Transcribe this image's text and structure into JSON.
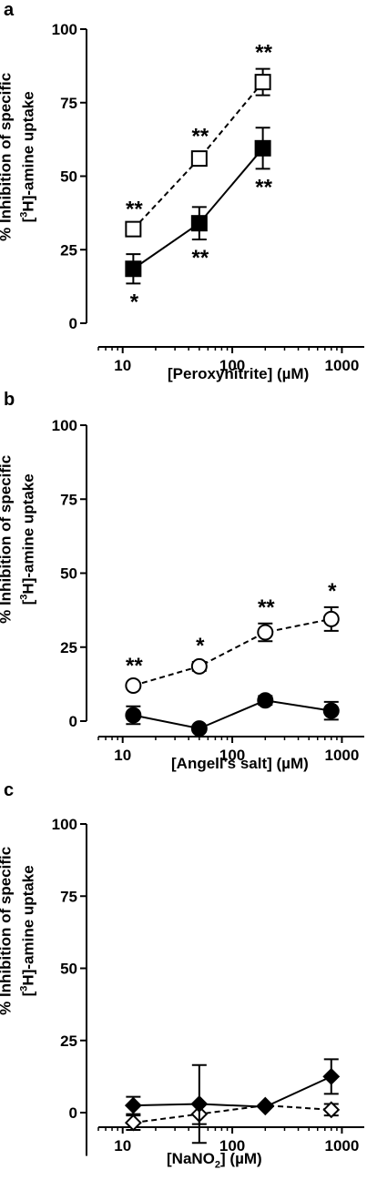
{
  "chart_data": [
    {
      "type": "line",
      "panel": "a",
      "xlabel": "[Peroxynitrite] (µM)",
      "ylabel_line1": "% Inhibition of specific",
      "ylabel_line2_sup": "3",
      "ylabel_line2_pre": "[",
      "ylabel_line2_post": "H]-amine uptake",
      "xscale": "log",
      "xlim": [
        6,
        1600
      ],
      "ylim": [
        0,
        100
      ],
      "xticks": [
        10,
        100,
        1000
      ],
      "xtick_labels": [
        "10",
        "100",
        "1000"
      ],
      "yticks": [
        0,
        25,
        50,
        75,
        100
      ],
      "ytick_labels": [
        "0",
        "25",
        "50",
        "75",
        "100"
      ],
      "series": [
        {
          "marker": "square",
          "filled": false,
          "dashed": true,
          "x": [
            12.5,
            50,
            190
          ],
          "y": [
            32,
            56,
            82
          ],
          "err": [
            0,
            2,
            4.5
          ],
          "sig": [
            "**",
            "**",
            "**"
          ],
          "sig_pos": [
            "above",
            "above",
            "above"
          ]
        },
        {
          "marker": "square",
          "filled": true,
          "dashed": false,
          "x": [
            12.5,
            50,
            190
          ],
          "y": [
            18.5,
            34,
            59.5
          ],
          "err": [
            5,
            5.5,
            7
          ],
          "sig": [
            "*",
            "**",
            "**"
          ],
          "sig_pos": [
            "below",
            "below",
            "below"
          ]
        }
      ]
    },
    {
      "type": "line",
      "panel": "b",
      "xlabel": "[Angeli's salt] (µM)",
      "ylabel_line1": "% Inhibition of specific",
      "ylabel_line2_sup": "3",
      "ylabel_line2_pre": "[",
      "ylabel_line2_post": "H]-amine uptake",
      "xscale": "log",
      "xlim": [
        6,
        1600
      ],
      "ylim": [
        0,
        100
      ],
      "xticks": [
        10,
        100,
        1000
      ],
      "xtick_labels": [
        "10",
        "100",
        "1000"
      ],
      "yticks": [
        0,
        25,
        50,
        75,
        100
      ],
      "ytick_labels": [
        "0",
        "25",
        "50",
        "75",
        "100"
      ],
      "series": [
        {
          "marker": "circle",
          "filled": false,
          "dashed": true,
          "x": [
            12.5,
            50,
            200,
            800
          ],
          "y": [
            12,
            18.5,
            30,
            34.5
          ],
          "err": [
            0,
            1.5,
            3,
            4
          ],
          "sig": [
            "**",
            "*",
            "**",
            "*"
          ],
          "sig_pos": [
            "above",
            "above",
            "above",
            "above"
          ]
        },
        {
          "marker": "circle",
          "filled": true,
          "dashed": false,
          "x": [
            12.5,
            50,
            200,
            800
          ],
          "y": [
            2,
            -2.5,
            7,
            3.5
          ],
          "err": [
            3,
            1,
            1.5,
            3
          ],
          "sig": [
            "",
            "",
            "",
            ""
          ],
          "sig_pos": [
            "above",
            "above",
            "above",
            "above"
          ]
        }
      ]
    },
    {
      "type": "line",
      "panel": "c",
      "xlabel_pre": "[NaNO",
      "xlabel_sub": "2",
      "xlabel_post": "] (µM)",
      "ylabel_line1": "% Inhibition of specific",
      "ylabel_line2_sup": "3",
      "ylabel_line2_pre": "[",
      "ylabel_line2_post": "H]-amine uptake",
      "xscale": "log",
      "xlim": [
        6,
        1600
      ],
      "ylim": [
        -15,
        100
      ],
      "xticks": [
        10,
        100,
        1000
      ],
      "xtick_labels": [
        "10",
        "100",
        "1000"
      ],
      "yticks": [
        0,
        25,
        50,
        75,
        100
      ],
      "ytick_labels": [
        "0",
        "25",
        "50",
        "75",
        "100"
      ],
      "series": [
        {
          "marker": "diamond",
          "filled": false,
          "dashed": true,
          "x": [
            12.5,
            50,
            200,
            800
          ],
          "y": [
            -3.5,
            -0.5,
            2.5,
            1
          ],
          "err": [
            2.5,
            3.5,
            0,
            2
          ],
          "sig": [
            "",
            "",
            "",
            ""
          ],
          "sig_pos": [
            "below",
            "below",
            "below",
            "below"
          ]
        },
        {
          "marker": "diamond",
          "filled": true,
          "dashed": false,
          "x": [
            12.5,
            50,
            200,
            800
          ],
          "y": [
            2.5,
            3,
            2,
            12.5
          ],
          "err": [
            3,
            13.5,
            0,
            6
          ],
          "sig": [
            "",
            "",
            "",
            ""
          ],
          "sig_pos": [
            "above",
            "above",
            "above",
            "above"
          ]
        }
      ]
    }
  ]
}
